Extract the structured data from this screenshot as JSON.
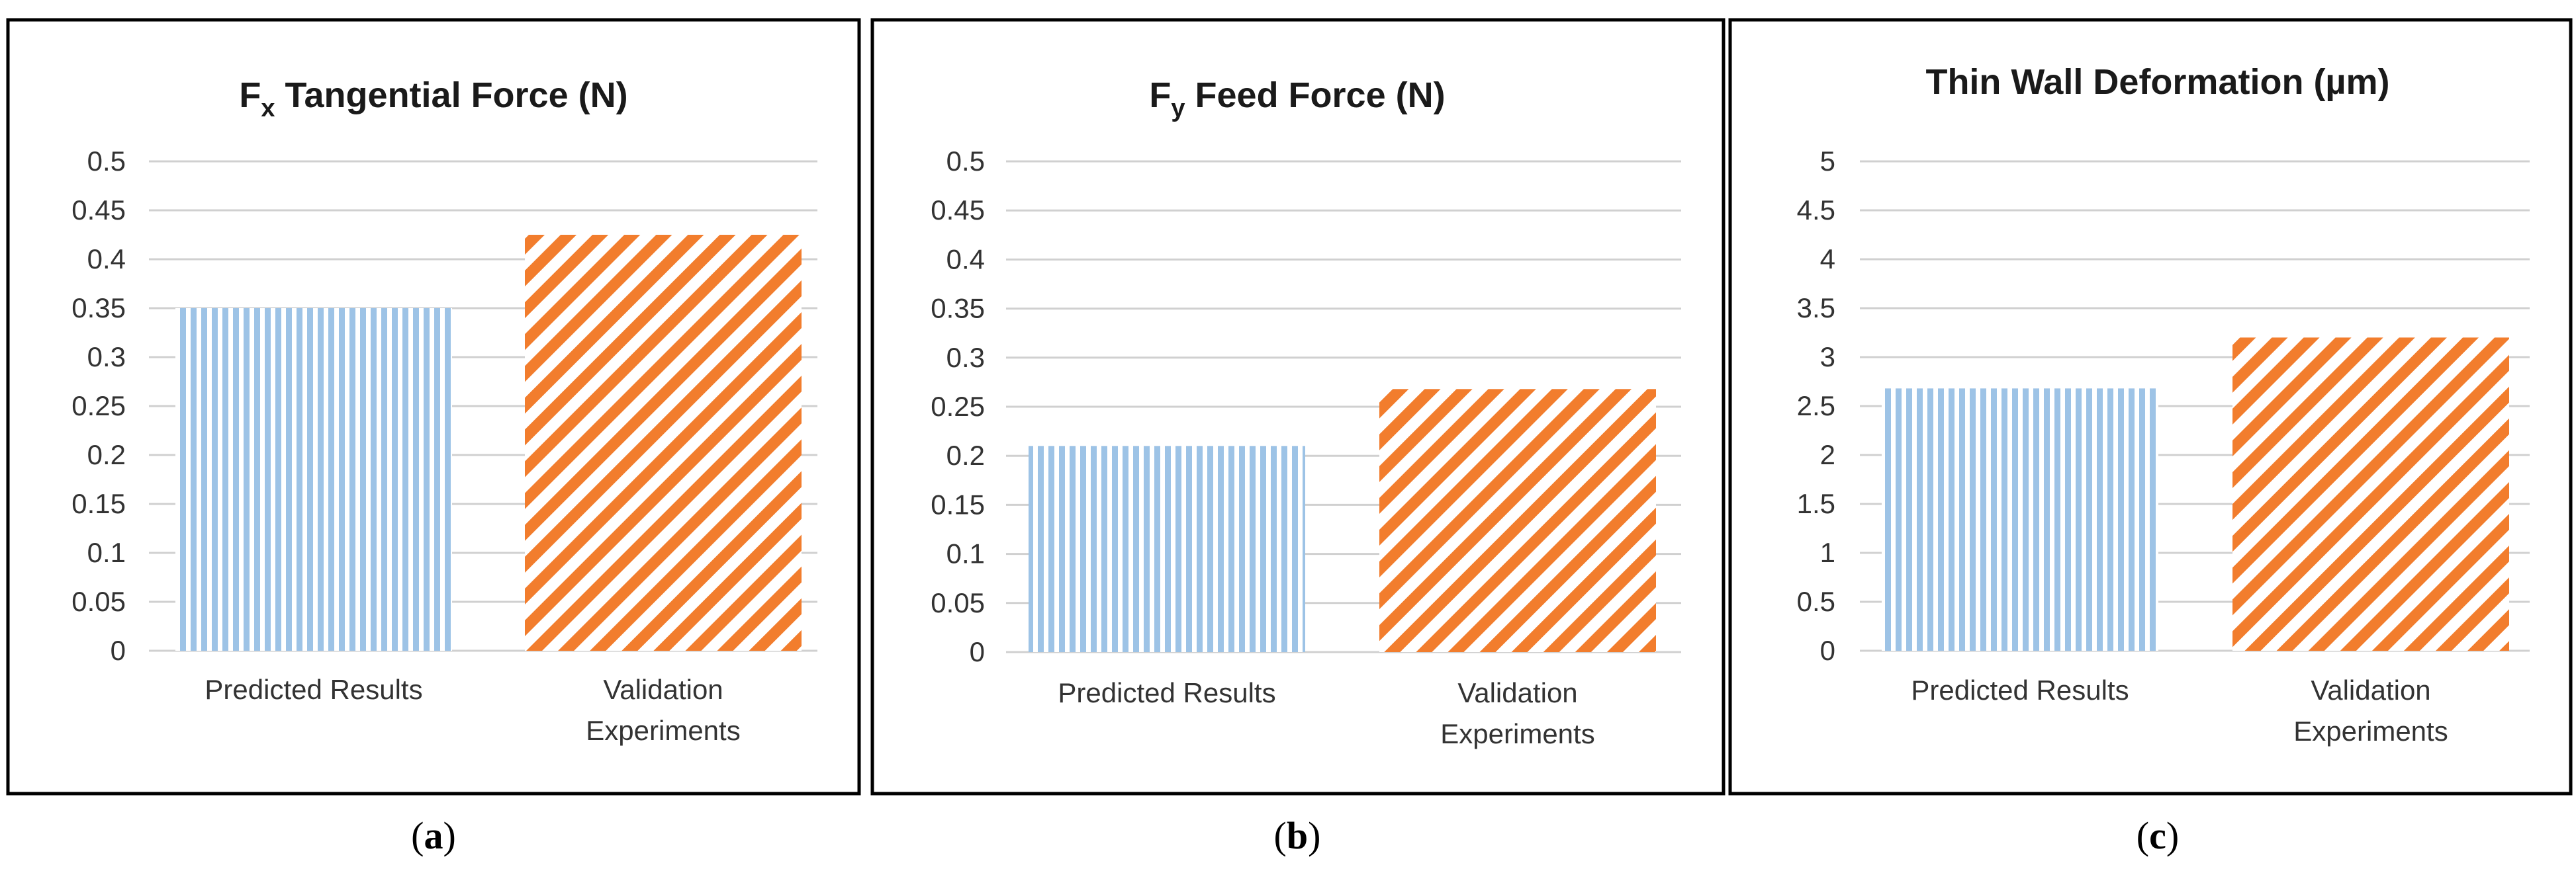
{
  "colors": {
    "predicted": "#9dc3e6",
    "validation": "#f27d2d",
    "grid": "#d0d0d0",
    "frame": "#000000"
  },
  "chart_data": [
    {
      "type": "bar",
      "title": {
        "prefix": "F",
        "subscript": "x",
        "suffix": " Tangential Force (N)"
      },
      "categories": [
        "Predicted Results",
        "Validation Experiments"
      ],
      "category_lines": [
        [
          "Predicted Results"
        ],
        [
          "Validation",
          "Experiments"
        ]
      ],
      "values": [
        0.35,
        0.425
      ],
      "patterns": [
        "vertical-stripes",
        "diagonal-stripes"
      ],
      "ylim": [
        0,
        0.5
      ],
      "yticks": [
        "0",
        "0.05",
        "0.1",
        "0.15",
        "0.2",
        "0.25",
        "0.3",
        "0.35",
        "0.4",
        "0.45",
        "0.5"
      ],
      "grid": true,
      "xlabel": "",
      "ylabel": "",
      "caption": {
        "open": "(",
        "letter": "a",
        "close": ")"
      }
    },
    {
      "type": "bar",
      "title": {
        "prefix": "F",
        "subscript": "y",
        "suffix": " Feed Force (N)"
      },
      "categories": [
        "Predicted Results",
        "Validation Experiments"
      ],
      "category_lines": [
        [
          "Predicted Results"
        ],
        [
          "Validation",
          "Experiments"
        ]
      ],
      "values": [
        0.21,
        0.268
      ],
      "patterns": [
        "vertical-stripes",
        "diagonal-stripes"
      ],
      "ylim": [
        0,
        0.5
      ],
      "yticks": [
        "0",
        "0.05",
        "0.1",
        "0.15",
        "0.2",
        "0.25",
        "0.3",
        "0.35",
        "0.4",
        "0.45",
        "0.5"
      ],
      "grid": true,
      "xlabel": "",
      "ylabel": "",
      "caption": {
        "open": "(",
        "letter": "b",
        "close": ")"
      }
    },
    {
      "type": "bar",
      "title": {
        "prefix": "Thin Wall Deformation (µm)",
        "subscript": "",
        "suffix": ""
      },
      "categories": [
        "Predicted Results",
        "Validation Experiments"
      ],
      "category_lines": [
        [
          "Predicted Results"
        ],
        [
          "Validation",
          "Experiments"
        ]
      ],
      "values": [
        2.68,
        3.2
      ],
      "patterns": [
        "vertical-stripes",
        "diagonal-stripes"
      ],
      "ylim": [
        0,
        5
      ],
      "yticks": [
        "0",
        "0.5",
        "1",
        "1.5",
        "2",
        "2.5",
        "3",
        "3.5",
        "4",
        "4.5",
        "5"
      ],
      "grid": true,
      "xlabel": "",
      "ylabel": "",
      "caption": {
        "open": "(",
        "letter": "c",
        "close": ")"
      }
    }
  ]
}
